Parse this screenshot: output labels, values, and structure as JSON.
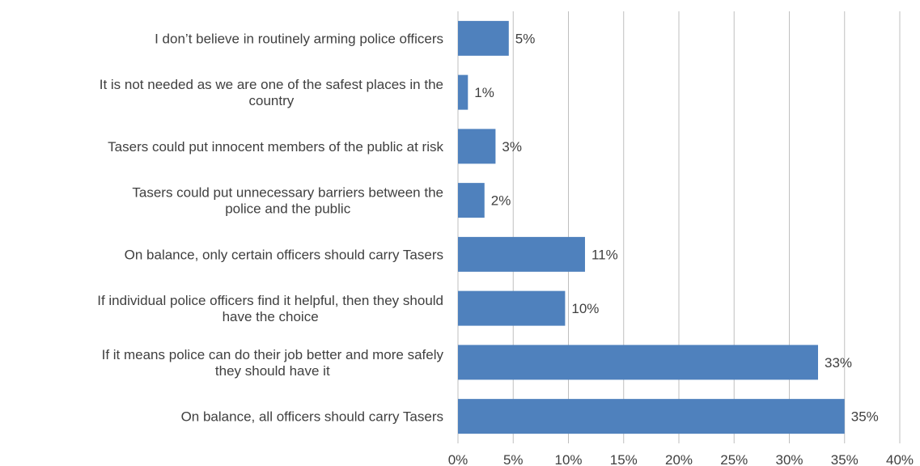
{
  "chart_data": {
    "type": "bar",
    "orientation": "horizontal",
    "categories": [
      [
        "I don’t believe in routinely arming police officers"
      ],
      [
        "It is not needed as we are one of the safest places in the",
        "country"
      ],
      [
        "Tasers could put innocent members of the public at risk"
      ],
      [
        "Tasers could put unnecessary barriers between the",
        "police and the public"
      ],
      [
        "On balance, only certain officers should carry Tasers"
      ],
      [
        "If individual police officers find it helpful, then they should",
        "have the choice"
      ],
      [
        "If it means police can do their job better and more safely",
        "they should have it"
      ],
      [
        "On balance, all officers should carry Tasers"
      ]
    ],
    "values": [
      4.6,
      0.9,
      3.4,
      2.4,
      11.5,
      9.7,
      32.6,
      35.0
    ],
    "data_labels": [
      "5%",
      "1%",
      "3%",
      "2%",
      "11%",
      "10%",
      "33%",
      "35%"
    ],
    "xlim": [
      0,
      40
    ],
    "xticks": [
      0,
      5,
      10,
      15,
      20,
      25,
      30,
      35,
      40
    ],
    "xtick_labels": [
      "0%",
      "5%",
      "10%",
      "15%",
      "20%",
      "25%",
      "30%",
      "35%",
      "40%"
    ],
    "grid": true,
    "bar_color": "#4f81bd",
    "grid_color": "#bfbfbf"
  }
}
